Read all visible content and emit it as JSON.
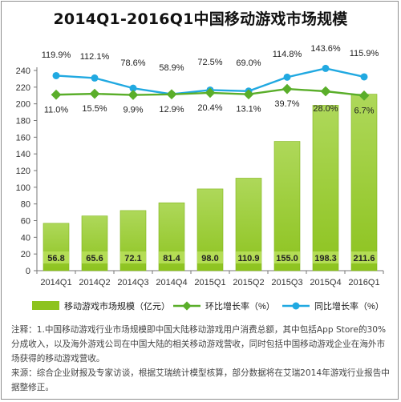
{
  "title": "2014Q1-2016Q1中国移动游戏市场规模",
  "colors": {
    "bar": "#8dc31f",
    "bar_gradient_top": "#aed85a",
    "qoq_line": "#5aae2a",
    "yoy_line": "#21a9e1",
    "bar_label_bg": "#b4dd55",
    "axis": "#777777"
  },
  "chart_data": {
    "type": "bar",
    "categories": [
      "2014Q1",
      "2014Q2",
      "2014Q3",
      "2014Q4",
      "2015Q1",
      "2015Q2",
      "2015Q3",
      "2015Q4",
      "2016Q1"
    ],
    "ylim": [
      0,
      240
    ],
    "yticks": [
      0,
      20,
      40,
      60,
      80,
      100,
      120,
      140,
      160,
      180,
      200,
      220,
      240
    ],
    "grid": false,
    "legend_position": "bottom",
    "series": [
      {
        "name": "移动游戏市场规模（亿元）",
        "kind": "bar",
        "values": [
          56.8,
          65.6,
          72.1,
          81.4,
          98.0,
          110.9,
          155.0,
          198.3,
          211.6
        ],
        "labels": [
          "56.8",
          "65.6",
          "72.1",
          "81.4",
          "98.0",
          "110.9",
          "155.0",
          "198.3",
          "211.6"
        ]
      },
      {
        "name": "环比增长率（%）",
        "kind": "line",
        "values": [
          11.0,
          15.5,
          9.9,
          12.9,
          20.4,
          13.1,
          39.7,
          28.0,
          6.7
        ],
        "labels": [
          "11.0%",
          "15.5%",
          "9.9%",
          "12.9%",
          "20.4%",
          "13.1%",
          "39.7%",
          "28.0%",
          "6.7%"
        ]
      },
      {
        "name": "同比增长率（%）",
        "kind": "line",
        "values": [
          119.9,
          112.1,
          78.6,
          58.9,
          72.5,
          69.0,
          114.8,
          143.6,
          115.9
        ],
        "labels": [
          "119.9%",
          "112.1%",
          "78.6%",
          "58.9%",
          "72.5%",
          "69.0%",
          "114.8%",
          "143.6%",
          "115.9%"
        ]
      }
    ]
  },
  "notes": [
    "注释：1.中国移动游戏行业市场规模即中国大陆移动游戏用户消费总额，其中包括App Store的30%分成收入，以及海外游戏公司在中国大陆的相关移动游戏营收，同时包括中国移动游戏企业在海外市场获得的移动游戏营收。",
    "来源：综合企业财报及专家访谈，根据艾瑞统计模型核算，部分数据将在艾瑞2014年游戏行业报告中据整修正。"
  ]
}
